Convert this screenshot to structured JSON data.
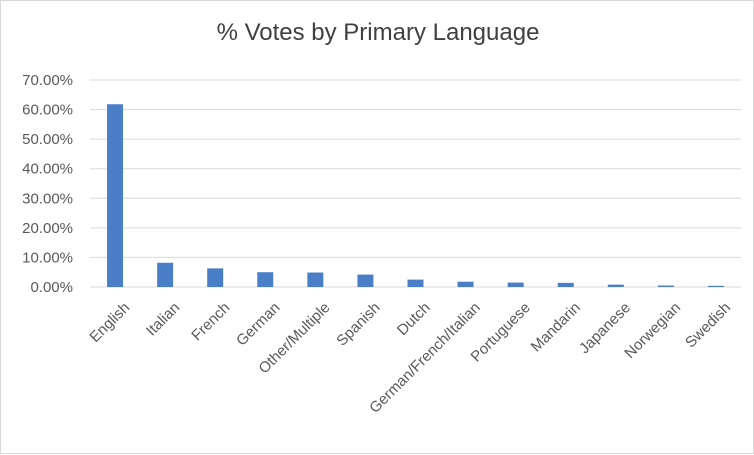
{
  "chart_data": {
    "type": "bar",
    "title": "% Votes by Primary Language",
    "xlabel": "",
    "ylabel": "",
    "categories": [
      "English",
      "Italian",
      "French",
      "German",
      "Other/Multiple",
      "Spanish",
      "Dutch",
      "German/French/Italian",
      "Portuguese",
      "Mandarin",
      "Japanese",
      "Norwegian",
      "Swedish"
    ],
    "values": [
      61.8,
      8.2,
      6.3,
      5.0,
      4.9,
      4.2,
      2.5,
      1.8,
      1.5,
      1.4,
      0.8,
      0.5,
      0.4
    ],
    "ylim": [
      0,
      70
    ],
    "yticks": [
      "0.00%",
      "10.00%",
      "20.00%",
      "30.00%",
      "40.00%",
      "50.00%",
      "60.00%",
      "70.00%"
    ],
    "grid": true,
    "legend": "none",
    "bar_color": "#4a7fc8",
    "grid_color": "#d9d9d9"
  }
}
